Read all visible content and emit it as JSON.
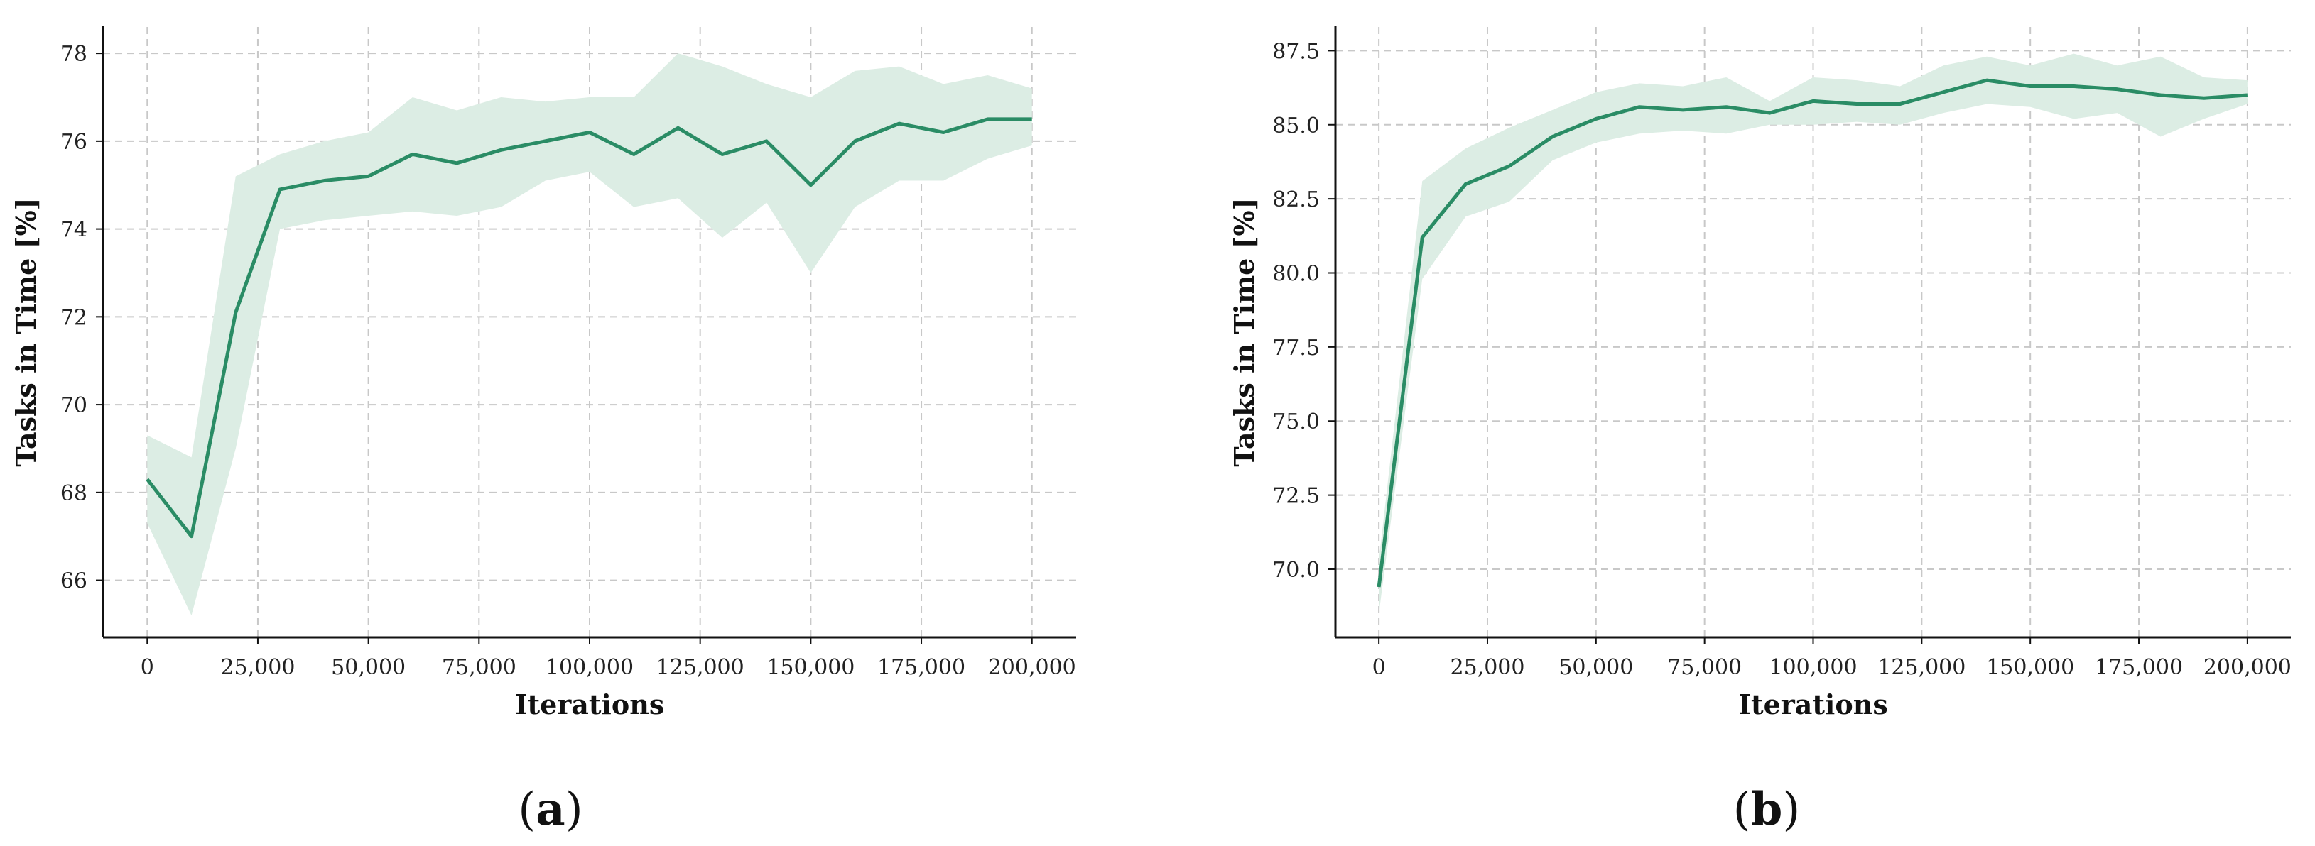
{
  "chart_data": [
    {
      "type": "line",
      "panel_label": "a",
      "xlabel": "Iterations",
      "ylabel": "Tasks in Time [%]",
      "xlim": [
        -10000,
        210000
      ],
      "ylim": [
        64.7,
        78.6
      ],
      "x_ticks": [
        0,
        25000,
        50000,
        75000,
        100000,
        125000,
        150000,
        175000,
        200000
      ],
      "x_tick_labels": [
        "0",
        "25,000",
        "50,000",
        "75,000",
        "100,000",
        "125,000",
        "150,000",
        "175,000",
        "200,000"
      ],
      "y_ticks": [
        66,
        68,
        70,
        72,
        74,
        76,
        78
      ],
      "y_tick_labels": [
        "66",
        "68",
        "70",
        "72",
        "74",
        "76",
        "78"
      ],
      "grid": true,
      "line_color": "#2a8c65",
      "band_color": "#dcede4",
      "series": [
        {
          "x": [
            0,
            10000,
            20000,
            30000,
            40000,
            50000,
            60000,
            70000,
            80000,
            90000,
            100000,
            110000,
            120000,
            130000,
            140000,
            150000,
            160000,
            170000,
            180000,
            190000,
            200000
          ],
          "mean": [
            68.3,
            67.0,
            72.1,
            74.9,
            75.1,
            75.2,
            75.7,
            75.5,
            75.8,
            76.0,
            76.2,
            75.7,
            76.3,
            75.7,
            76.0,
            75.0,
            76.0,
            76.4,
            76.2,
            76.5,
            76.5
          ],
          "lower": [
            67.3,
            65.2,
            69.0,
            74.0,
            74.2,
            74.3,
            74.4,
            74.3,
            74.5,
            75.1,
            75.3,
            74.5,
            74.7,
            73.8,
            74.6,
            73.0,
            74.5,
            75.1,
            75.1,
            75.6,
            75.9
          ],
          "upper": [
            69.3,
            68.8,
            75.2,
            75.7,
            76.0,
            76.2,
            77.0,
            76.7,
            77.0,
            76.9,
            77.0,
            77.0,
            78.0,
            77.7,
            77.3,
            77.0,
            77.6,
            77.7,
            77.3,
            77.5,
            77.2
          ]
        }
      ]
    },
    {
      "type": "line",
      "panel_label": "b",
      "xlabel": "Iterations",
      "ylabel": "Tasks in Time [%]",
      "xlim": [
        -10000,
        210000
      ],
      "ylim": [
        67.7,
        88.3
      ],
      "x_ticks": [
        0,
        25000,
        50000,
        75000,
        100000,
        125000,
        150000,
        175000,
        200000
      ],
      "x_tick_labels": [
        "0",
        "25,000",
        "50,000",
        "75,000",
        "100,000",
        "125,000",
        "150,000",
        "175,000",
        "200,000"
      ],
      "y_ticks": [
        70.0,
        72.5,
        75.0,
        77.5,
        80.0,
        82.5,
        85.0,
        87.5
      ],
      "y_tick_labels": [
        "70.0",
        "72.5",
        "75.0",
        "77.5",
        "80.0",
        "82.5",
        "85.0",
        "87.5"
      ],
      "grid": true,
      "line_color": "#2a8c65",
      "band_color": "#dcede4",
      "series": [
        {
          "x": [
            0,
            10000,
            20000,
            30000,
            40000,
            50000,
            60000,
            70000,
            80000,
            90000,
            100000,
            110000,
            120000,
            130000,
            140000,
            150000,
            160000,
            170000,
            180000,
            190000,
            200000
          ],
          "mean": [
            69.4,
            81.2,
            83.0,
            83.6,
            84.6,
            85.2,
            85.6,
            85.5,
            85.6,
            85.4,
            85.8,
            85.7,
            85.7,
            86.1,
            86.5,
            86.3,
            86.3,
            86.2,
            86.0,
            85.9,
            86.0
          ],
          "lower": [
            68.5,
            79.8,
            81.9,
            82.4,
            83.8,
            84.4,
            84.7,
            84.8,
            84.7,
            85.0,
            85.0,
            85.1,
            85.0,
            85.4,
            85.7,
            85.6,
            85.2,
            85.4,
            84.6,
            85.2,
            85.7
          ],
          "upper": [
            70.3,
            83.1,
            84.2,
            84.9,
            85.5,
            86.1,
            86.4,
            86.3,
            86.6,
            85.8,
            86.6,
            86.5,
            86.3,
            87.0,
            87.3,
            87.0,
            87.4,
            87.0,
            87.3,
            86.6,
            86.5
          ]
        }
      ]
    }
  ]
}
